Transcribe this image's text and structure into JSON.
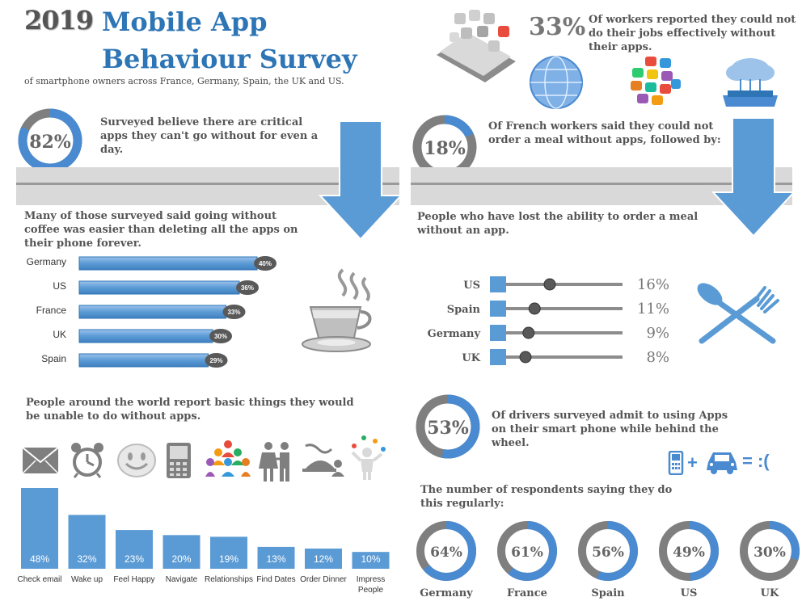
{
  "header": {
    "year": "2019",
    "title_line1": "Mobile App",
    "title_line2": "Behaviour Survey",
    "subtitle": "of smartphone owners across France, Germany, Spain, the UK and US."
  },
  "stat_82": {
    "value": "82%",
    "pct": 82,
    "text": "Surveyed believe there are critical apps they can't go without for even a day."
  },
  "coffee": {
    "caption": "Many of those surveyed said going without coffee was easier than deleting all the apps on their phone forever.",
    "chart_data": {
      "type": "bar",
      "orientation": "horizontal",
      "categories": [
        "Germany",
        "US",
        "France",
        "UK",
        "Spain"
      ],
      "values": [
        40,
        36,
        33,
        30,
        29
      ],
      "labels": [
        "40%",
        "36%",
        "33%",
        "30%",
        "29%"
      ],
      "xlim": [
        0,
        40
      ]
    }
  },
  "stat_33": {
    "value": "33%",
    "text": "Of workers reported they could not do their jobs effectively without their apps."
  },
  "stat_18": {
    "value": "18%",
    "pct": 18,
    "text": "Of French workers said they could not order a meal without apps, followed by:"
  },
  "meal": {
    "caption": "People who have lost the ability to order a meal without an app.",
    "chart_data": {
      "type": "scatter",
      "categories": [
        "US",
        "Spain",
        "Germany",
        "UK"
      ],
      "values": [
        16,
        11,
        9,
        8
      ],
      "labels": [
        "16%",
        "11%",
        "9%",
        "8%"
      ]
    }
  },
  "basic": {
    "caption": "People around the world report basic things they would be unable to do without apps.",
    "icons": [
      "envelope-icon",
      "alarm-clock-icon",
      "smiley-icon",
      "phone-icon",
      "people-group-icon",
      "couple-icon",
      "dinner-icon",
      "juggler-icon"
    ],
    "chart_data": {
      "type": "bar",
      "categories": [
        "Check email",
        "Wake up",
        "Feel Happy",
        "Navigate",
        "Relationships",
        "Find Dates",
        "Order Dinner",
        "Impress People"
      ],
      "values": [
        48,
        32,
        23,
        20,
        19,
        13,
        12,
        10
      ],
      "labels": [
        "48%",
        "32%",
        "23%",
        "20%",
        "19%",
        "13%",
        "12%",
        "10%"
      ]
    }
  },
  "stat_53": {
    "value": "53%",
    "pct": 53,
    "text": "Of drivers surveyed admit to using Apps on their smart phone while behind the wheel.",
    "equation_plus": "+",
    "equation_result": "= :("
  },
  "regular": {
    "caption": "The number of respondents saying they do this regularly:",
    "chart_data": {
      "type": "pie",
      "categories": [
        "Germany",
        "France",
        "Spain",
        "US",
        "UK"
      ],
      "values": [
        64,
        61,
        56,
        49,
        30
      ],
      "labels": [
        "64%",
        "61%",
        "56%",
        "49%",
        "30%"
      ]
    }
  },
  "colors": {
    "accent": "#5b9bd5",
    "bar": "#5b9bd5",
    "ring_gray": "#8c8c8c",
    "title_blue": "#2e75b6",
    "text": "#555555"
  }
}
